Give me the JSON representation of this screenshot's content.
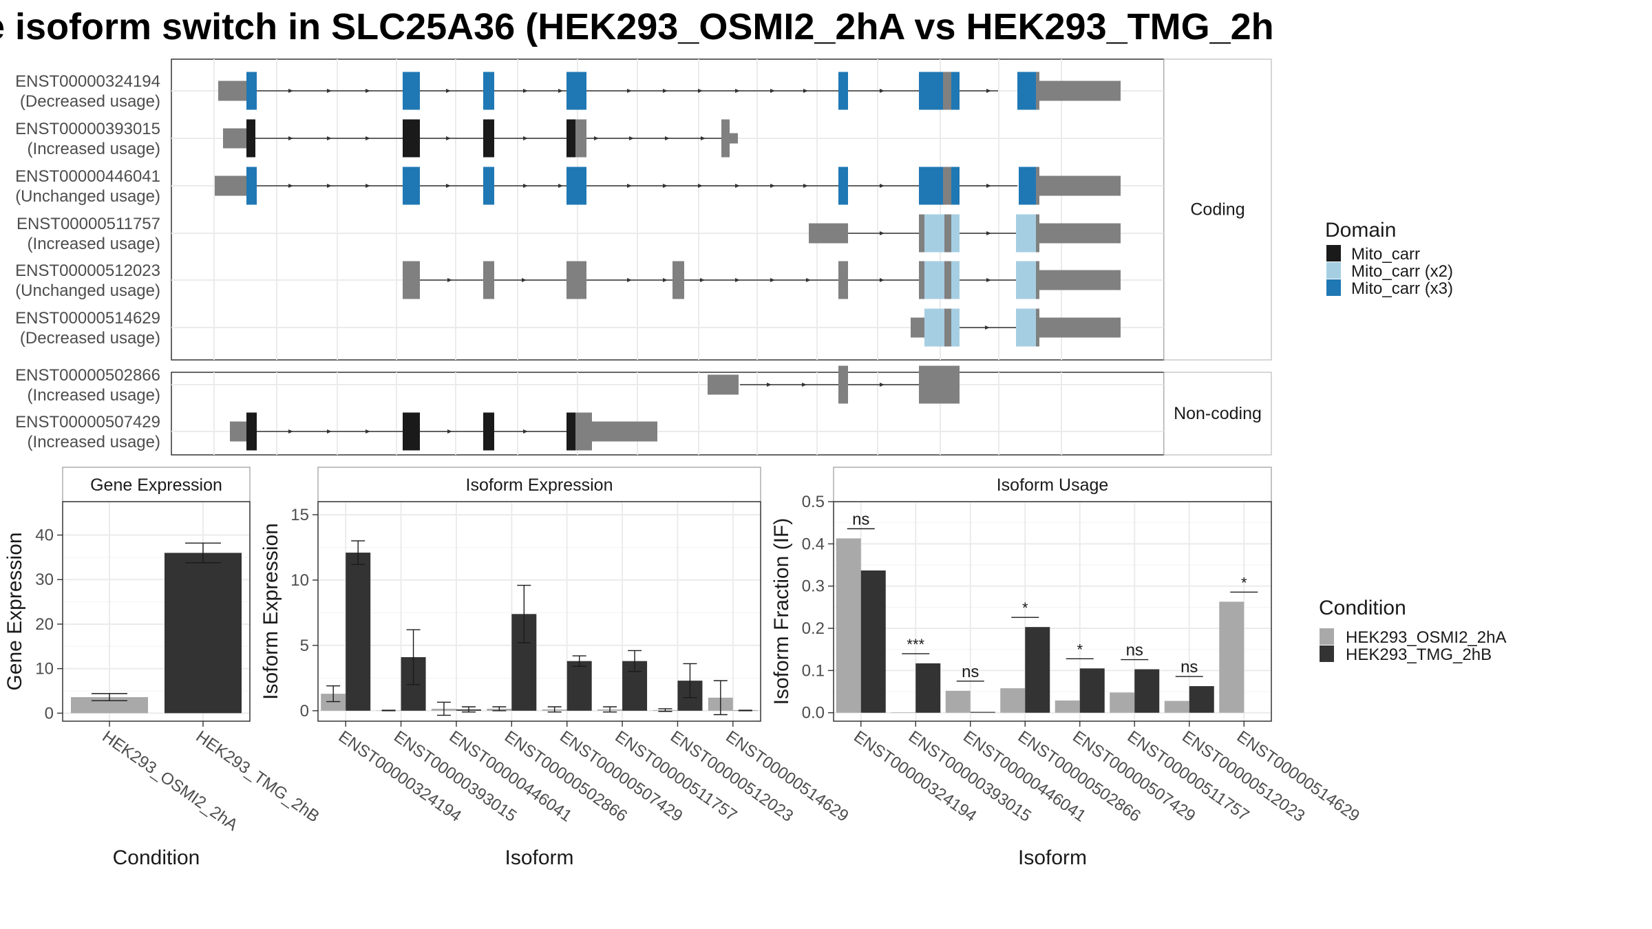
{
  "title": "e isoform switch in SLC25A36 (HEK293_OSMI2_2hA vs HEK293_TMG_2h",
  "colors": {
    "mito_carr": "#1a1a1a",
    "mito_carr_x2": "#a6cee3",
    "mito_carr_x3": "#1f78b4",
    "exon": "#808080",
    "cond_a": "#a9a9a9",
    "cond_b": "#333333"
  },
  "chart_data": [
    {
      "type": "gene-structure",
      "facets": [
        "Coding",
        "Non-coding"
      ],
      "isoforms": [
        {
          "id": "ENST00000324194",
          "usage": "(Decreased usage)",
          "facet": "Coding"
        },
        {
          "id": "ENST00000393015",
          "usage": "(Increased usage)",
          "facet": "Coding"
        },
        {
          "id": "ENST00000446041",
          "usage": "(Unchanged usage)",
          "facet": "Coding"
        },
        {
          "id": "ENST00000511757",
          "usage": "(Increased usage)",
          "facet": "Coding"
        },
        {
          "id": "ENST00000512023",
          "usage": "(Unchanged usage)",
          "facet": "Coding"
        },
        {
          "id": "ENST00000514629",
          "usage": "(Decreased usage)",
          "facet": "Coding"
        },
        {
          "id": "ENST00000502866",
          "usage": "(Increased usage)",
          "facet": "Non-coding"
        },
        {
          "id": "ENST00000507429",
          "usage": "(Increased usage)",
          "facet": "Non-coding"
        }
      ],
      "legend": {
        "title": "Domain",
        "entries": [
          "Mito_carr",
          "Mito_carr (x2)",
          "Mito_carr (x3)"
        ]
      }
    },
    {
      "type": "bar",
      "title": "Gene Expression",
      "xlabel": "Condition",
      "ylabel": "Gene Expression",
      "categories": [
        "HEK293_OSMI2_2hA",
        "HEK293_TMG_2hB"
      ],
      "values": [
        3.6,
        36.0
      ],
      "errors": [
        0.8,
        2.2
      ],
      "yticks": [
        0,
        10,
        20,
        30,
        40
      ],
      "ylim": [
        -1.8,
        47.5
      ]
    },
    {
      "type": "bar",
      "title": "Isoform Expression",
      "xlabel": "Isoform",
      "ylabel": "Isoform Expression",
      "categories": [
        "ENST00000324194",
        "ENST00000393015",
        "ENST00000446041",
        "ENST00000502866",
        "ENST00000507429",
        "ENST00000511757",
        "ENST00000512023",
        "ENST00000514629"
      ],
      "series": [
        {
          "name": "HEK293_OSMI2_2hA",
          "values": [
            1.3,
            0.02,
            0.15,
            0.15,
            0.1,
            0.1,
            0.05,
            1.0
          ],
          "errors": [
            0.6,
            0.02,
            0.5,
            0.15,
            0.2,
            0.2,
            0.1,
            1.3
          ]
        },
        {
          "name": "HEK293_TMG_2hB",
          "values": [
            12.1,
            4.1,
            0.1,
            7.4,
            3.8,
            3.8,
            2.3,
            0.02
          ],
          "errors": [
            0.9,
            2.1,
            0.2,
            2.2,
            0.4,
            0.8,
            1.3,
            0.02
          ]
        }
      ],
      "yticks": [
        0,
        5,
        10,
        15
      ],
      "ylim": [
        -0.8,
        16.0
      ]
    },
    {
      "type": "bar",
      "title": "Isoform Usage",
      "xlabel": "Isoform",
      "ylabel": "Isoform Fraction (IF)",
      "categories": [
        "ENST00000324194",
        "ENST00000393015",
        "ENST00000446041",
        "ENST00000502866",
        "ENST00000507429",
        "ENST00000511757",
        "ENST00000512023",
        "ENST00000514629"
      ],
      "series": [
        {
          "name": "HEK293_OSMI2_2hA",
          "values": [
            0.413,
            0.001,
            0.052,
            0.058,
            0.029,
            0.048,
            0.028,
            0.263
          ]
        },
        {
          "name": "HEK293_TMG_2hB",
          "values": [
            0.337,
            0.117,
            0.002,
            0.203,
            0.105,
            0.103,
            0.063,
            0.0
          ]
        }
      ],
      "significance": [
        "ns",
        "***",
        "ns",
        "*",
        "*",
        "ns",
        "ns",
        "*"
      ],
      "yticks": [
        0.0,
        0.1,
        0.2,
        0.3,
        0.4,
        0.5
      ],
      "ylim": [
        -0.02,
        0.5
      ]
    }
  ],
  "condition_legend": {
    "title": "Condition",
    "entries": [
      "HEK293_OSMI2_2hA",
      "HEK293_TMG_2hB"
    ]
  }
}
